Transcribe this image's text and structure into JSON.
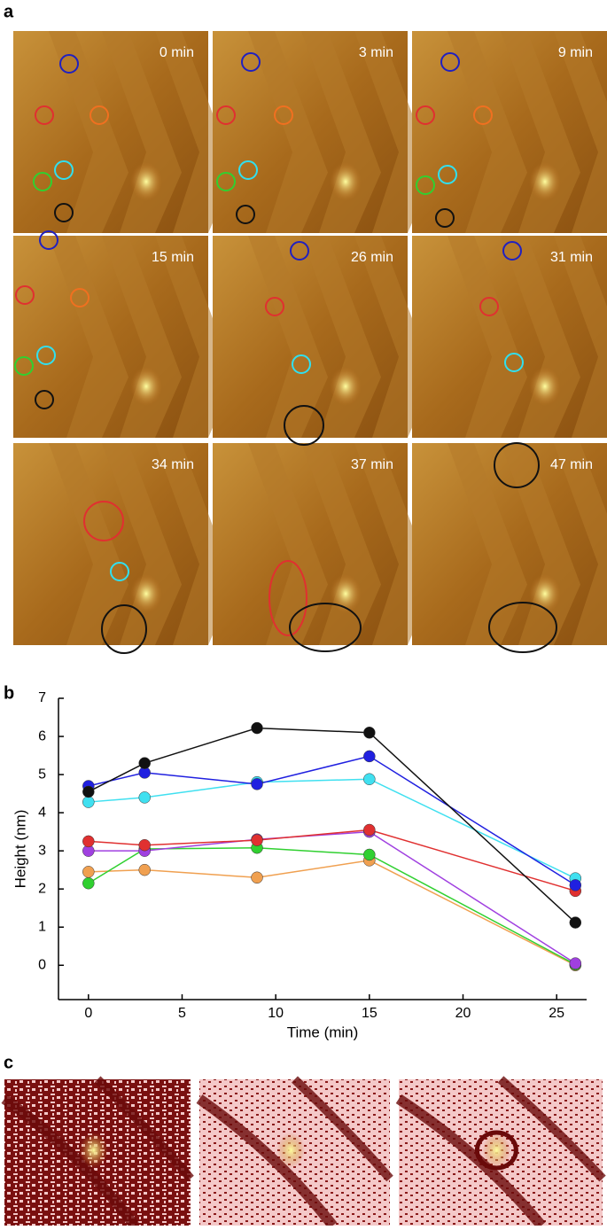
{
  "panel_labels": [
    "a",
    "b",
    "c"
  ],
  "panel_a": {
    "time_labels": [
      "0 min",
      "3 min",
      "9 min",
      "15 min",
      "26 min",
      "31 min",
      "34 min",
      "37 min",
      "47 min"
    ]
  },
  "chart_data": {
    "type": "line",
    "x_label": "Time (min)",
    "y_label": "Height (nm)",
    "x": [
      0,
      3,
      9,
      15,
      26
    ],
    "series": [
      {
        "color": "#f0a050",
        "values": [
          2.45,
          2.5,
          2.3,
          2.75,
          0
        ]
      },
      {
        "color": "#30d030",
        "values": [
          2.15,
          3.05,
          3.08,
          2.9,
          0.02
        ]
      },
      {
        "color": "#a040e0",
        "values": [
          3.0,
          3.0,
          3.3,
          3.5,
          0.05
        ]
      },
      {
        "color": "#e03030",
        "values": [
          3.25,
          3.15,
          3.28,
          3.55,
          1.95
        ]
      },
      {
        "color": "#40e0f0",
        "values": [
          4.28,
          4.4,
          4.8,
          4.88,
          2.28
        ]
      },
      {
        "color": "#2020e0",
        "values": [
          4.7,
          5.05,
          4.75,
          5.48,
          2.1
        ]
      },
      {
        "color": "#111111",
        "values": [
          4.55,
          5.3,
          6.22,
          6.1,
          1.12
        ]
      }
    ],
    "xlim": [
      -1.6,
      26.6
    ],
    "xticks": [
      0,
      5,
      10,
      15,
      20,
      25
    ],
    "ylim": [
      -0.9,
      7
    ],
    "yticks": [
      0,
      1,
      2,
      3,
      4,
      5,
      6,
      7
    ]
  }
}
